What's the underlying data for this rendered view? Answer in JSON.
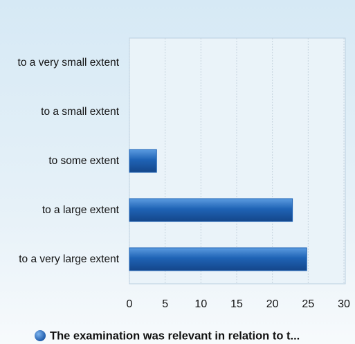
{
  "chart_data": {
    "type": "bar",
    "orientation": "horizontal",
    "categories": [
      "to a very small extent",
      "to a small extent",
      "to some extent",
      "to a large extent",
      "to a very large extent"
    ],
    "series": [
      {
        "name": "The examination was relevant in relation to t...",
        "color": "#1f63b5",
        "values": [
          0,
          0,
          3.8,
          22.8,
          24.8
        ]
      }
    ],
    "xlim": [
      0,
      30
    ],
    "xticks": [
      0,
      5,
      10,
      15,
      20,
      25,
      30
    ],
    "grid": true,
    "legend": "bottom"
  }
}
